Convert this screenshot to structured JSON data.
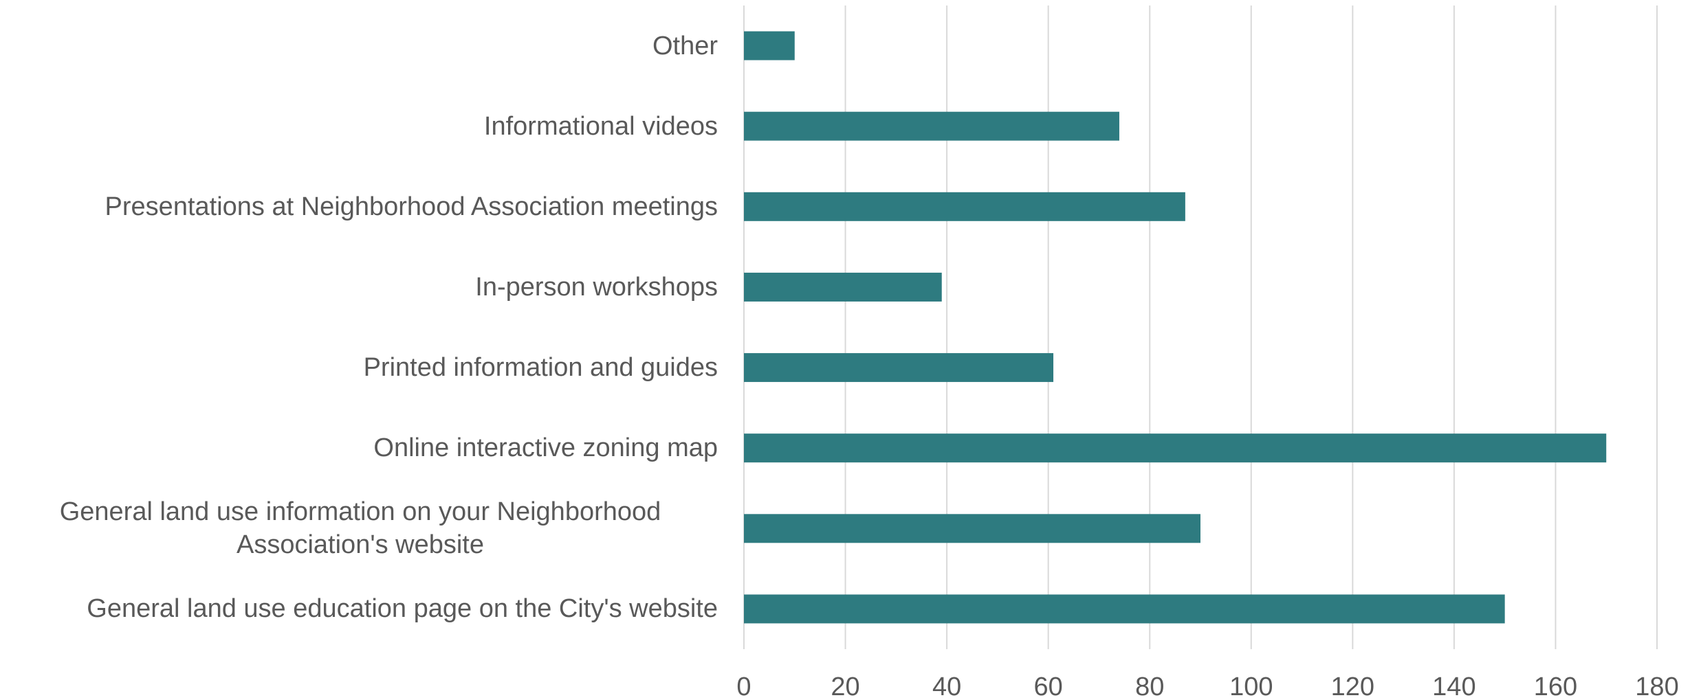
{
  "chart_data": {
    "type": "bar",
    "orientation": "horizontal",
    "categories": [
      "Other",
      "Informational videos",
      "Presentations at Neighborhood Association meetings",
      "In-person workshops",
      "Printed information and guides",
      "Online interactive zoning map",
      "General land use information on your Neighborhood Association's website",
      "General land use education page on the City's website"
    ],
    "values": [
      10,
      74,
      87,
      39,
      61,
      170,
      90,
      150
    ],
    "color": "#2e7b80",
    "xlim": [
      0,
      180
    ],
    "xticks": [
      0,
      20,
      40,
      60,
      80,
      100,
      120,
      140,
      160,
      180
    ],
    "grid": true
  }
}
